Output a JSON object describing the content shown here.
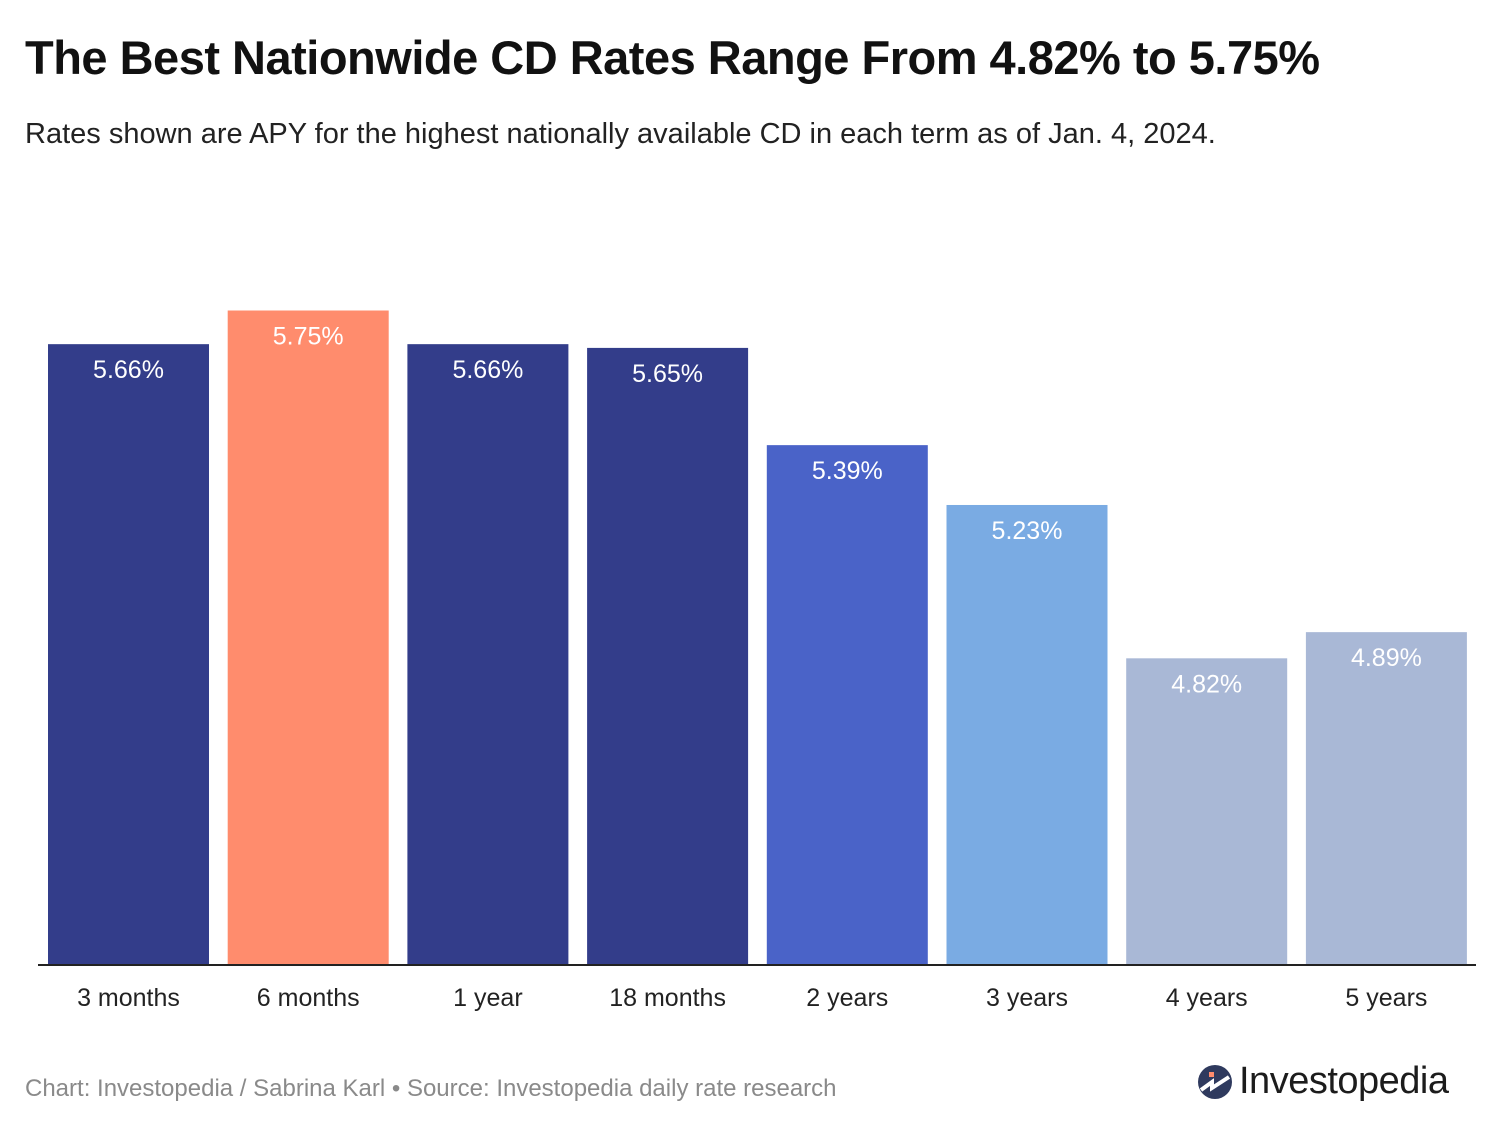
{
  "chart_data": {
    "type": "bar",
    "title": "The Best Nationwide CD Rates Range From 4.82% to 5.75%",
    "subtitle": "Rates shown are APY for the highest nationally available CD in each term as of Jan. 4, 2024.",
    "categories": [
      "3 months",
      "6 months",
      "1 year",
      "18 months",
      "2 years",
      "3 years",
      "4 years",
      "5 years"
    ],
    "values": [
      5.66,
      5.75,
      5.66,
      5.65,
      5.39,
      5.23,
      4.82,
      4.89
    ],
    "data_labels": [
      "5.66%",
      "5.75%",
      "5.66%",
      "5.65%",
      "5.39%",
      "5.23%",
      "4.82%",
      "4.89%"
    ],
    "colors": [
      "#333d8a",
      "#ff8c6d",
      "#333d8a",
      "#333d8a",
      "#4a63c8",
      "#7aabe3",
      "#a9b8d6",
      "#a9b8d6"
    ],
    "xlabel": "",
    "ylabel": "",
    "ylim": [
      4.0,
      5.75
    ],
    "grid": false,
    "legend": "none"
  },
  "footer": {
    "credit": "Chart: Investopedia / Sabrina Karl • Source: Investopedia daily rate research"
  },
  "logo": {
    "text": "Investopedia"
  }
}
